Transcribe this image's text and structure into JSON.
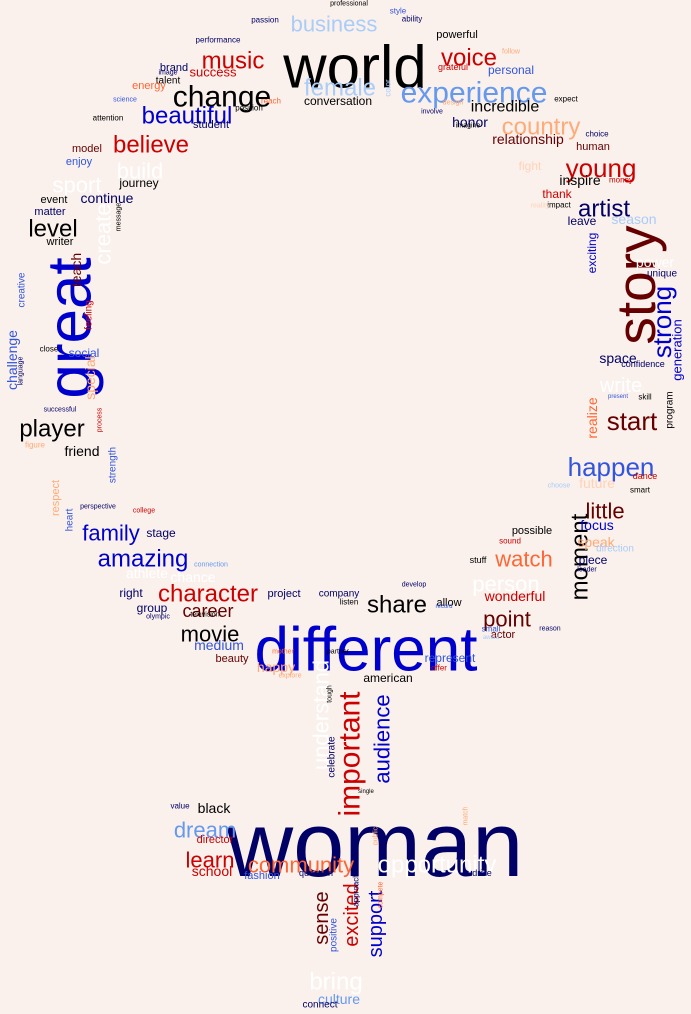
{
  "colors": {
    "background": "#faf1ec",
    "navy": "#000066",
    "black": "#000000",
    "blue": "#0000cc",
    "royal": "#3355dd",
    "light_blue": "#6699ee",
    "pale_blue": "#aaccf8",
    "red": "#cc0000",
    "dark_red": "#660000",
    "orange": "#ff6633",
    "peach": "#ffaa77",
    "pale_peach": "#ffd2b8",
    "white": "#ffffff"
  },
  "words": [
    {
      "text": "woman",
      "color": "navy"
    },
    {
      "text": "different",
      "color": "blue"
    },
    {
      "text": "world",
      "color": "black"
    },
    {
      "text": "great",
      "color": "blue"
    },
    {
      "text": "story",
      "color": "dark_red"
    },
    {
      "text": "experience",
      "color": "light_blue"
    },
    {
      "text": "change",
      "color": "black"
    },
    {
      "text": "female",
      "color": "pale_blue"
    },
    {
      "text": "music",
      "color": "red"
    },
    {
      "text": "voice",
      "color": "red"
    },
    {
      "text": "business",
      "color": "pale_blue"
    },
    {
      "text": "beautiful",
      "color": "blue"
    },
    {
      "text": "believe",
      "color": "red"
    },
    {
      "text": "country",
      "color": "peach"
    },
    {
      "text": "incredible",
      "color": "black"
    },
    {
      "text": "young",
      "color": "red"
    },
    {
      "text": "build",
      "color": "white"
    },
    {
      "text": "sport",
      "color": "white"
    },
    {
      "text": "artist",
      "color": "navy"
    },
    {
      "text": "level",
      "color": "black"
    },
    {
      "text": "create",
      "color": "white"
    },
    {
      "text": "strong",
      "color": "blue"
    },
    {
      "text": "player",
      "color": "black"
    },
    {
      "text": "start",
      "color": "dark_red"
    },
    {
      "text": "happen",
      "color": "royal"
    },
    {
      "text": "little",
      "color": "dark_red"
    },
    {
      "text": "family",
      "color": "blue"
    },
    {
      "text": "amazing",
      "color": "blue"
    },
    {
      "text": "moment",
      "color": "black"
    },
    {
      "text": "watch",
      "color": "orange"
    },
    {
      "text": "person",
      "color": "white"
    },
    {
      "text": "character",
      "color": "red"
    },
    {
      "text": "career",
      "color": "dark_red"
    },
    {
      "text": "share",
      "color": "black"
    },
    {
      "text": "point",
      "color": "dark_red"
    },
    {
      "text": "movie",
      "color": "black"
    },
    {
      "text": "important",
      "color": "red"
    },
    {
      "text": "audience",
      "color": "blue"
    },
    {
      "text": "understand",
      "color": "white"
    },
    {
      "text": "dream",
      "color": "light_blue"
    },
    {
      "text": "learn",
      "color": "red"
    },
    {
      "text": "community",
      "color": "orange"
    },
    {
      "text": "opportunity",
      "color": "white"
    },
    {
      "text": "black",
      "color": "black"
    },
    {
      "text": "sense",
      "color": "dark_red"
    },
    {
      "text": "excited",
      "color": "red"
    },
    {
      "text": "support",
      "color": "blue"
    },
    {
      "text": "bring",
      "color": "white"
    },
    {
      "text": "culture",
      "color": "light_blue"
    },
    {
      "text": "medium",
      "color": "royal"
    },
    {
      "text": "happy",
      "color": "peach"
    },
    {
      "text": "wonderful",
      "color": "red"
    },
    {
      "text": "conversation",
      "color": "black"
    },
    {
      "text": "relationship",
      "color": "dark_red"
    },
    {
      "text": "honor",
      "color": "navy"
    },
    {
      "text": "inspire",
      "color": "black"
    },
    {
      "text": "continue",
      "color": "navy"
    },
    {
      "text": "journey",
      "color": "black"
    },
    {
      "text": "personal",
      "color": "royal"
    },
    {
      "text": "powerful",
      "color": "black"
    },
    {
      "text": "success",
      "color": "red"
    },
    {
      "text": "season",
      "color": "pale_blue"
    },
    {
      "text": "teach",
      "color": "dark_red"
    },
    {
      "text": "challenge",
      "color": "royal"
    },
    {
      "text": "social",
      "color": "royal"
    },
    {
      "text": "special",
      "color": "peach"
    },
    {
      "text": "friend",
      "color": "black"
    },
    {
      "text": "focus",
      "color": "blue"
    },
    {
      "text": "speak",
      "color": "peach"
    },
    {
      "text": "space",
      "color": "navy"
    },
    {
      "text": "generation",
      "color": "blue"
    },
    {
      "text": "realize",
      "color": "orange"
    },
    {
      "text": "represent",
      "color": "royal"
    },
    {
      "text": "american",
      "color": "black"
    },
    {
      "text": "school",
      "color": "red"
    },
    {
      "text": "fashion",
      "color": "royal"
    },
    {
      "text": "project",
      "color": "navy"
    },
    {
      "text": "company",
      "color": "navy"
    },
    {
      "text": "group",
      "color": "navy"
    },
    {
      "text": "right",
      "color": "navy"
    },
    {
      "text": "stage",
      "color": "navy"
    },
    {
      "text": "model",
      "color": "dark_red"
    },
    {
      "text": "enjoy",
      "color": "royal"
    },
    {
      "text": "event",
      "color": "black"
    },
    {
      "text": "matter",
      "color": "navy"
    },
    {
      "text": "writer",
      "color": "black"
    },
    {
      "text": "brand",
      "color": "navy"
    },
    {
      "text": "talent",
      "color": "black"
    },
    {
      "text": "student",
      "color": "navy"
    },
    {
      "text": "energy",
      "color": "orange"
    },
    {
      "text": "fight",
      "color": "pale_peach"
    },
    {
      "text": "thank",
      "color": "red"
    },
    {
      "text": "leave",
      "color": "navy"
    },
    {
      "text": "human",
      "color": "dark_red"
    },
    {
      "text": "exciting",
      "color": "blue"
    },
    {
      "text": "power",
      "color": "white"
    },
    {
      "text": "unique",
      "color": "navy"
    },
    {
      "text": "program",
      "color": "black"
    },
    {
      "text": "write",
      "color": "white"
    },
    {
      "text": "future",
      "color": "pale_peach"
    },
    {
      "text": "possible",
      "color": "black"
    },
    {
      "text": "piece",
      "color": "navy"
    },
    {
      "text": "allow",
      "color": "black"
    },
    {
      "text": "actor",
      "color": "dark_red"
    },
    {
      "text": "beauty",
      "color": "dark_red"
    },
    {
      "text": "creative",
      "color": "royal"
    },
    {
      "text": "feeling",
      "color": "red"
    },
    {
      "text": "respect",
      "color": "peach"
    },
    {
      "text": "direction",
      "color": "pale_blue"
    },
    {
      "text": "athlete",
      "color": "white"
    },
    {
      "text": "chance",
      "color": "white"
    },
    {
      "text": "strength",
      "color": "royal"
    },
    {
      "text": "heart",
      "color": "royal"
    },
    {
      "text": "celebrate",
      "color": "navy"
    },
    {
      "text": "positive",
      "color": "royal"
    },
    {
      "text": "connect",
      "color": "navy"
    },
    {
      "text": "director",
      "color": "red"
    },
    {
      "text": "question",
      "color": "navy"
    },
    {
      "text": "drive",
      "color": "navy"
    },
    {
      "text": "value",
      "color": "navy"
    },
    {
      "text": "passion",
      "color": "navy"
    },
    {
      "text": "style",
      "color": "royal"
    },
    {
      "text": "ability",
      "color": "navy"
    },
    {
      "text": "professional",
      "color": "black"
    },
    {
      "text": "performance",
      "color": "navy"
    },
    {
      "text": "grateful",
      "color": "red"
    },
    {
      "text": "expect",
      "color": "black"
    },
    {
      "text": "color",
      "color": "pale_blue"
    },
    {
      "text": "position",
      "color": "black"
    },
    {
      "text": "reach",
      "color": "orange"
    },
    {
      "text": "attention",
      "color": "black"
    },
    {
      "text": "science",
      "color": "royal"
    },
    {
      "text": "image",
      "color": "navy"
    },
    {
      "text": "design",
      "color": "peach"
    },
    {
      "text": "involve",
      "color": "navy"
    },
    {
      "text": "imagine",
      "color": "black"
    },
    {
      "text": "choice",
      "color": "navy"
    },
    {
      "text": "money",
      "color": "red"
    },
    {
      "text": "impact",
      "color": "black"
    },
    {
      "text": "reality",
      "color": "pale_peach"
    },
    {
      "text": "message",
      "color": "black"
    },
    {
      "text": "language",
      "color": "navy"
    },
    {
      "text": "close",
      "color": "black"
    },
    {
      "text": "successful",
      "color": "navy"
    },
    {
      "text": "process",
      "color": "red"
    },
    {
      "text": "figure",
      "color": "peach"
    },
    {
      "text": "perspective",
      "color": "navy"
    },
    {
      "text": "college",
      "color": "red"
    },
    {
      "text": "confidence",
      "color": "navy"
    },
    {
      "text": "skill",
      "color": "black"
    },
    {
      "text": "present",
      "color": "royal"
    },
    {
      "text": "dance",
      "color": "red"
    },
    {
      "text": "smart",
      "color": "black"
    },
    {
      "text": "choose",
      "color": "pale_blue"
    },
    {
      "text": "leader",
      "color": "navy"
    },
    {
      "text": "sound",
      "color": "red"
    },
    {
      "text": "stuff",
      "color": "black"
    },
    {
      "text": "develop",
      "color": "navy"
    },
    {
      "text": "record",
      "color": "royal"
    },
    {
      "text": "small",
      "color": "royal"
    },
    {
      "text": "reason",
      "color": "navy"
    },
    {
      "text": "award",
      "color": "pale_blue"
    },
    {
      "text": "connection",
      "color": "light_blue"
    },
    {
      "text": "television",
      "color": "black"
    },
    {
      "text": "listen",
      "color": "black"
    },
    {
      "text": "olympic",
      "color": "navy"
    },
    {
      "text": "partner",
      "color": "black"
    },
    {
      "text": "mother",
      "color": "orange"
    },
    {
      "text": "explore",
      "color": "peach"
    },
    {
      "text": "tough",
      "color": "black"
    },
    {
      "text": "offer",
      "color": "red"
    },
    {
      "text": "single",
      "color": "black"
    },
    {
      "text": "public",
      "color": "peach"
    },
    {
      "text": "approach",
      "color": "navy"
    },
    {
      "text": "compete",
      "color": "orange"
    },
    {
      "text": "match",
      "color": "peach"
    },
    {
      "text": "follow",
      "color": "peach"
    }
  ]
}
